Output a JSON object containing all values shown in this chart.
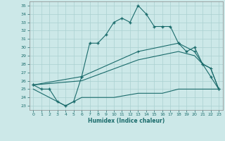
{
  "xlabel": "Humidex (Indice chaleur)",
  "bg_color": "#cce8e8",
  "line_color": "#1a6b6b",
  "grid_color": "#aad0d0",
  "xlim": [
    -0.5,
    23.5
  ],
  "ylim": [
    22.5,
    35.5
  ],
  "yticks": [
    23,
    24,
    25,
    26,
    27,
    28,
    29,
    30,
    31,
    32,
    33,
    34,
    35
  ],
  "xticks": [
    0,
    1,
    2,
    3,
    4,
    5,
    6,
    7,
    8,
    9,
    10,
    11,
    12,
    13,
    14,
    15,
    16,
    17,
    18,
    19,
    20,
    21,
    22,
    23
  ],
  "line1_x": [
    0,
    1,
    2,
    3,
    4,
    5,
    6,
    7,
    8,
    9,
    10,
    11,
    12,
    13,
    14,
    15,
    16,
    17,
    18,
    19,
    20,
    21,
    22,
    23
  ],
  "line1_y": [
    25.5,
    25,
    25,
    23.5,
    23,
    23.5,
    26.5,
    30.5,
    30.5,
    31.5,
    33,
    33.5,
    33,
    35,
    34,
    32.5,
    32.5,
    32.5,
    30.5,
    29.5,
    30,
    28,
    26.5,
    25
  ],
  "line2_x": [
    0,
    6,
    13,
    18,
    20,
    21,
    22,
    23
  ],
  "line2_y": [
    25.5,
    26.5,
    29.5,
    30.5,
    29.5,
    28,
    27.5,
    25
  ],
  "line3_x": [
    0,
    6,
    13,
    18,
    20,
    21,
    22,
    23
  ],
  "line3_y": [
    25.5,
    26.0,
    28.5,
    29.5,
    29.0,
    28,
    27.5,
    25
  ],
  "line4_x": [
    0,
    3,
    4,
    5,
    6,
    10,
    13,
    16,
    18,
    20,
    23
  ],
  "line4_y": [
    25,
    23.5,
    23,
    23.5,
    24,
    24.0,
    24.5,
    24.5,
    25,
    25,
    25
  ]
}
